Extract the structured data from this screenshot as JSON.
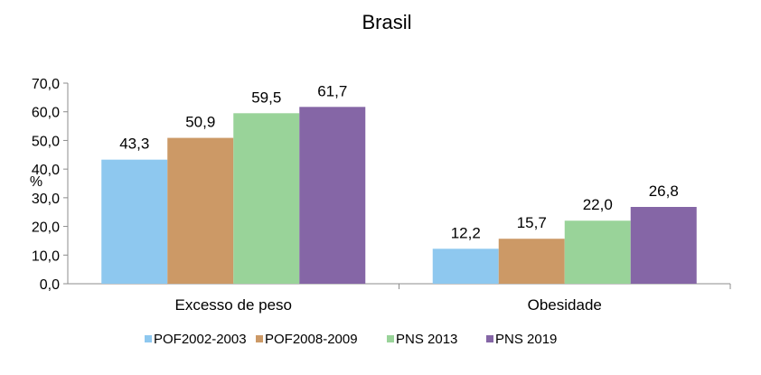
{
  "chart_data": {
    "type": "bar",
    "title": "Brasil",
    "ylabel": "%",
    "xlabel": "",
    "ylim": [
      0,
      70
    ],
    "yticks": [
      "0,0",
      "10,0",
      "20,0",
      "30,0",
      "40,0",
      "50,0",
      "60,0",
      "70,0"
    ],
    "categories": [
      "Excesso de peso",
      "Obesidade"
    ],
    "series": [
      {
        "name": "POF2002-2003",
        "color": "#8ec8ef",
        "values": [
          43.3,
          12.2
        ],
        "labels": [
          "43,3",
          "12,2"
        ]
      },
      {
        "name": "POF2008-2009",
        "color": "#cc9966",
        "values": [
          50.9,
          15.7
        ],
        "labels": [
          "50,9",
          "15,7"
        ]
      },
      {
        "name": "PNS 2013",
        "color": "#99d399",
        "values": [
          59.5,
          22.0
        ],
        "labels": [
          "59,5",
          "22,0"
        ]
      },
      {
        "name": "PNS 2019",
        "color": "#8566a6",
        "values": [
          61.7,
          26.8
        ],
        "labels": [
          "61,7",
          "26,8"
        ]
      }
    ],
    "legend_position": "bottom",
    "grid": false
  }
}
